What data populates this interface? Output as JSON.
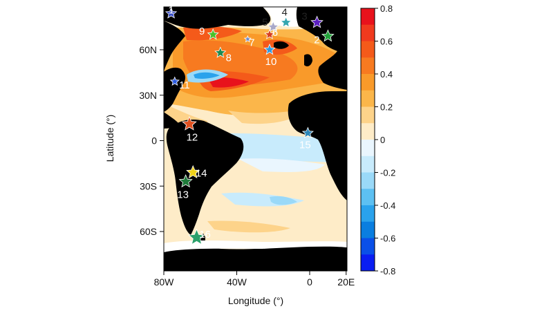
{
  "map": {
    "x_axis": {
      "label": "Longitude (°)",
      "range": [
        -80,
        20
      ],
      "ticks": [
        {
          "value": -80,
          "label": "80W"
        },
        {
          "value": -40,
          "label": "40W"
        },
        {
          "value": 0,
          "label": "0"
        },
        {
          "value": 20,
          "label": "20E"
        }
      ]
    },
    "y_axis": {
      "label": "Latitude (°)",
      "range": [
        -80,
        90
      ],
      "ticks": [
        {
          "value": 60,
          "label": "60N"
        },
        {
          "value": 30,
          "label": "30N"
        },
        {
          "value": 0,
          "label": "0"
        },
        {
          "value": -30,
          "label": "30S"
        },
        {
          "value": -60,
          "label": "60S"
        }
      ]
    },
    "colorbar": {
      "range": [
        -0.8,
        0.8
      ],
      "ticks": [
        "0.8",
        "0.6",
        "0.4",
        "0.2",
        "0",
        "-0.2",
        "-0.4",
        "-0.6",
        "-0.8"
      ],
      "colors": [
        "#e8121c",
        "#f03a1e",
        "#f45a1a",
        "#f77a20",
        "#f99a2a",
        "#fbb64a",
        "#fdd38a",
        "#feecc8",
        "#eaf6fe",
        "#c8ebfc",
        "#9ad9f8",
        "#5dc0f2",
        "#2aa2ec",
        "#0a7ee0",
        "#0a50e8",
        "#0a1ef2"
      ]
    },
    "sites": [
      {
        "id": "1",
        "lon": -76,
        "lat": 84,
        "color": "#3a4fc8",
        "size": 1.0
      },
      {
        "id": "2",
        "lon": 10,
        "lat": 69,
        "color": "#22a23a",
        "size": 1.1
      },
      {
        "id": "3",
        "lon": 4,
        "lat": 78,
        "color": "#5a1fc0",
        "size": 1.1
      },
      {
        "id": "4",
        "lon": -13,
        "lat": 78,
        "color": "#35a6b0",
        "size": 1.0
      },
      {
        "id": "5",
        "lon": -20,
        "lat": 75,
        "color": "#a8a8c8",
        "size": 1.0
      },
      {
        "id": "6",
        "lon": -22,
        "lat": 70,
        "color": "#d84020",
        "size": 0.9
      },
      {
        "id": "7",
        "lon": -34,
        "lat": 67,
        "color": "#6a8ad0",
        "size": 0.6
      },
      {
        "id": "8",
        "lon": -49,
        "lat": 58,
        "color": "#1f8a50",
        "size": 1.0
      },
      {
        "id": "9",
        "lon": -53,
        "lat": 70,
        "color": "#4ac12a",
        "size": 1.0
      },
      {
        "id": "10",
        "lon": -22,
        "lat": 60,
        "color": "#2f9ae0",
        "size": 1.0
      },
      {
        "id": "11",
        "lon": -74,
        "lat": 39,
        "color": "#2b5ae0",
        "size": 0.8
      },
      {
        "id": "12",
        "lon": -66,
        "lat": 11,
        "color": "#e0501f",
        "size": 1.3
      },
      {
        "id": "13",
        "lon": -68,
        "lat": -27,
        "color": "#1f7a3a",
        "size": 1.2
      },
      {
        "id": "14",
        "lon": -64,
        "lat": -21,
        "color": "#f0d21a",
        "size": 1.2
      },
      {
        "id": "15",
        "lon": -1,
        "lat": 5,
        "color": "#2b86b8",
        "size": 1.0
      },
      {
        "id": "16",
        "lon": -62,
        "lat": -64,
        "color": "#2aa06a",
        "size": 1.5
      }
    ]
  }
}
